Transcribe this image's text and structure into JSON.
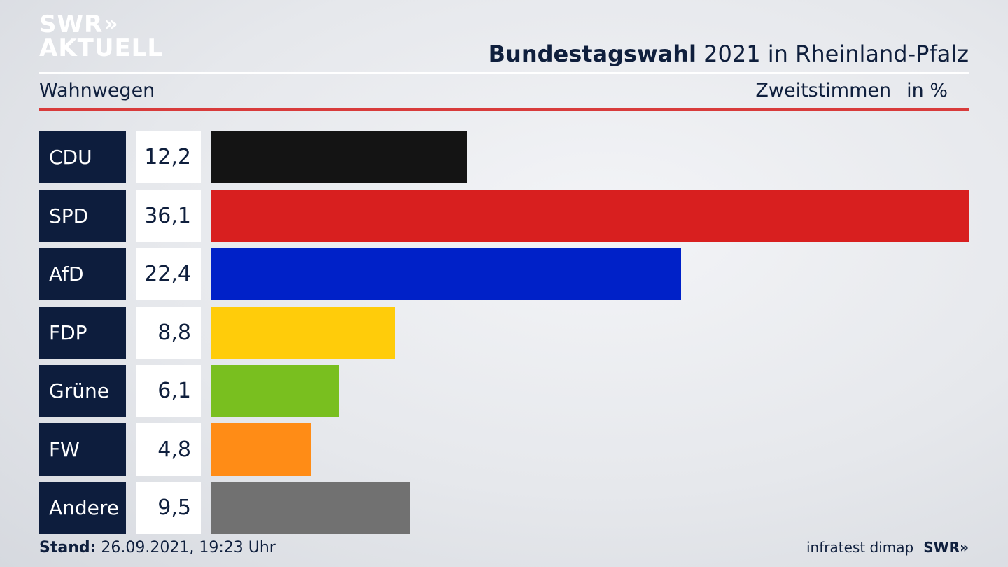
{
  "brand": {
    "line1": "SWR",
    "chevrons": "»",
    "line2": "AKTUELL"
  },
  "header": {
    "title_bold": "Bundestagswahl",
    "title_rest": " 2021 in Rheinland-Pfalz",
    "region": "Wahnwegen",
    "measure": "Zweitstimmen",
    "unit": "in %"
  },
  "colors": {
    "label_bg": "#0d1d3d",
    "accent_rule": "#d83b3b"
  },
  "chart_data": {
    "type": "bar",
    "orientation": "horizontal",
    "categories": [
      "CDU",
      "SPD",
      "AfD",
      "FDP",
      "Grüne",
      "FW",
      "Andere"
    ],
    "values": [
      12.2,
      36.1,
      22.4,
      8.8,
      6.1,
      4.8,
      9.5
    ],
    "value_labels": [
      "12,2",
      "36,1",
      "22,4",
      "8,8",
      "6,1",
      "4,8",
      "9,5"
    ],
    "colors": [
      "#141414",
      "#d81f1f",
      "#0021c8",
      "#ffcc0a",
      "#79bf1f",
      "#ff8c16",
      "#717171"
    ],
    "xlim": [
      0,
      36.1
    ],
    "grid": false,
    "legend": "none"
  },
  "footer": {
    "stand_label": "Stand:",
    "stand_value": " 26.09.2021, 19:23 Uhr",
    "source": "infratest dimap",
    "logo": "SWR»"
  }
}
